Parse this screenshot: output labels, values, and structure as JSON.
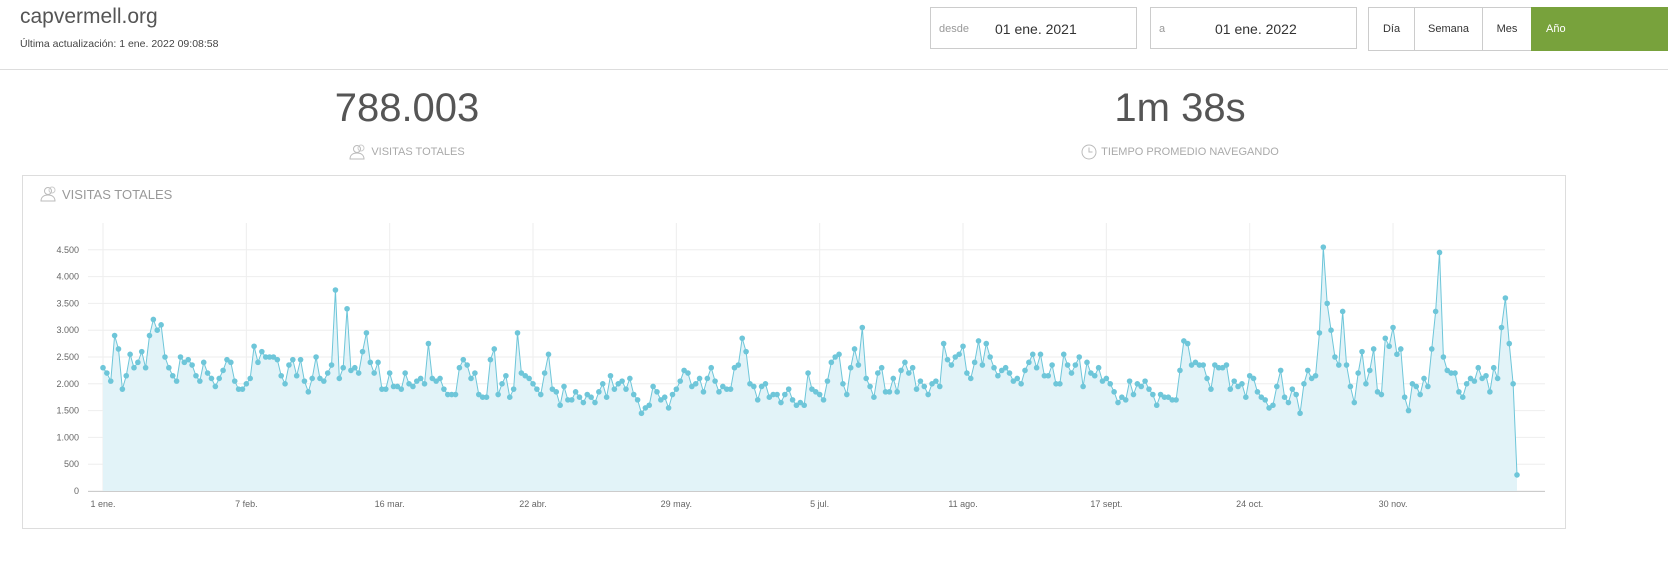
{
  "header": {
    "site": "capvermell.org",
    "updated": "Última actualización: 1 ene. 2022 09:08:58"
  },
  "date_range": {
    "from_label": "desde",
    "from": "01 ene. 2021",
    "to_label": "a",
    "to": "01 ene. 2022"
  },
  "periods": [
    "Día",
    "Semana",
    "Mes",
    "Año"
  ],
  "stats": [
    {
      "value": "788.003",
      "label": "VISITAS TOTALES"
    },
    {
      "value": "1m 38s",
      "label": "TIEMPO PROMEDIO NAVEGANDO"
    }
  ],
  "chart_data": {
    "type": "line",
    "title": "VISITAS TOTALES",
    "color": "#6ec6d9",
    "area": true,
    "area_color": "#e2f3f8",
    "grid": true,
    "categories": [
      "1 ene.",
      null,
      null,
      null,
      null,
      null,
      null,
      null,
      null,
      null,
      null,
      null,
      null,
      null,
      null,
      null,
      null,
      null,
      null,
      null,
      null,
      null,
      null,
      null,
      null,
      null,
      null,
      null,
      null,
      null,
      null,
      null,
      null,
      null,
      null,
      null,
      null,
      "7 feb.",
      null,
      null,
      null,
      null,
      null,
      null,
      null,
      null,
      null,
      null,
      null,
      null,
      null,
      null,
      null,
      null,
      null,
      null,
      null,
      null,
      null,
      null,
      null,
      null,
      null,
      null,
      null,
      null,
      null,
      null,
      null,
      null,
      null,
      null,
      null,
      null,
      "16 mar.",
      null,
      null,
      null,
      null,
      null,
      null,
      null,
      null,
      null,
      null,
      null,
      null,
      null,
      null,
      null,
      null,
      null,
      null,
      null,
      null,
      null,
      null,
      null,
      null,
      null,
      null,
      null,
      null,
      null,
      null,
      null,
      null,
      null,
      null,
      null,
      null,
      "22 abr.",
      null,
      null,
      null,
      null,
      null,
      null,
      null,
      null,
      null,
      null,
      null,
      null,
      null,
      null,
      null,
      null,
      null,
      null,
      null,
      null,
      null,
      null,
      null,
      null,
      null,
      null,
      null,
      null,
      null,
      null,
      null,
      null,
      null,
      null,
      null,
      null,
      "29 may.",
      null,
      null,
      null,
      null,
      null,
      null,
      null,
      null,
      null,
      null,
      null,
      null,
      null,
      null,
      null,
      null,
      null,
      null,
      null,
      null,
      null,
      null,
      null,
      null,
      null,
      null,
      null,
      null,
      null,
      null,
      null,
      null,
      null,
      null,
      null,
      null,
      "5 jul.",
      null,
      null,
      null,
      null,
      null,
      null,
      null,
      null,
      null,
      null,
      null,
      null,
      null,
      null,
      null,
      null,
      null,
      null,
      null,
      null,
      null,
      null,
      null,
      null,
      null,
      null,
      null,
      null,
      null,
      null,
      null,
      null,
      null,
      null,
      null,
      null,
      "11 ago.",
      null,
      null,
      null,
      null,
      null,
      null,
      null,
      null,
      null,
      null,
      null,
      null,
      null,
      null,
      null,
      null,
      null,
      null,
      null,
      null,
      null,
      null,
      null,
      null,
      null,
      null,
      null,
      null,
      null,
      null,
      null,
      null,
      null,
      null,
      null,
      null,
      "17 sept.",
      null,
      null,
      null,
      null,
      null,
      null,
      null,
      null,
      null,
      null,
      null,
      null,
      null,
      null,
      null,
      null,
      null,
      null,
      null,
      null,
      null,
      null,
      null,
      null,
      null,
      null,
      null,
      null,
      null,
      null,
      null,
      null,
      null,
      null,
      null,
      null,
      "24 oct.",
      null,
      null,
      null,
      null,
      null,
      null,
      null,
      null,
      null,
      null,
      null,
      null,
      null,
      null,
      null,
      null,
      null,
      null,
      null,
      null,
      null,
      null,
      null,
      null,
      null,
      null,
      null,
      null,
      null,
      null,
      null,
      null,
      null,
      null,
      null,
      null,
      "30 nov.",
      null,
      null,
      null,
      null,
      null,
      null,
      null,
      null,
      null,
      null,
      null,
      null,
      null,
      null,
      null,
      null,
      null,
      null,
      null,
      null,
      null,
      null,
      null,
      null,
      null,
      null,
      null,
      null,
      null,
      null,
      null,
      null
    ],
    "values": [
      2300,
      2200,
      2050,
      2900,
      2650,
      1900,
      2150,
      2550,
      2300,
      2400,
      2600,
      2300,
      2900,
      3200,
      3000,
      3100,
      2500,
      2300,
      2150,
      2050,
      2500,
      2400,
      2450,
      2350,
      2150,
      2050,
      2400,
      2200,
      2100,
      1950,
      2100,
      2250,
      2450,
      2400,
      2050,
      1900,
      1900,
      2000,
      2100,
      2700,
      2400,
      2600,
      2500,
      2500,
      2500,
      2450,
      2150,
      2000,
      2350,
      2450,
      2150,
      2450,
      2050,
      1850,
      2100,
      2500,
      2100,
      2050,
      2200,
      2350,
      3750,
      2100,
      2300,
      3400,
      2250,
      2300,
      2200,
      2600,
      2950,
      2400,
      2200,
      2400,
      1900,
      1900,
      2200,
      1950,
      1950,
      1900,
      2200,
      2000,
      1950,
      2050,
      2100,
      2000,
      2750,
      2100,
      2050,
      2100,
      1900,
      1800,
      1800,
      1800,
      2300,
      2450,
      2350,
      2100,
      2200,
      1800,
      1750,
      1750,
      2450,
      2650,
      1800,
      2000,
      2150,
      1750,
      1900,
      2950,
      2200,
      2150,
      2100,
      2000,
      1900,
      1800,
      2200,
      2550,
      1900,
      1850,
      1600,
      1950,
      1700,
      1700,
      1850,
      1750,
      1650,
      1800,
      1750,
      1650,
      1850,
      2000,
      1750,
      2150,
      1900,
      2000,
      2050,
      1900,
      2100,
      1800,
      1700,
      1450,
      1550,
      1600,
      1950,
      1850,
      1700,
      1750,
      1550,
      1800,
      1900,
      2050,
      2250,
      2200,
      1950,
      2000,
      2100,
      1850,
      2100,
      2300,
      2050,
      1850,
      1950,
      1900,
      1900,
      2300,
      2350,
      2850,
      2600,
      2000,
      1950,
      1700,
      1950,
      2000,
      1750,
      1800,
      1800,
      1650,
      1800,
      1900,
      1700,
      1600,
      1650,
      1600,
      2200,
      1900,
      1850,
      1800,
      1700,
      2050,
      2400,
      2500,
      2550,
      2000,
      1800,
      2300,
      2650,
      2350,
      3050,
      2100,
      1950,
      1750,
      2200,
      2300,
      1850,
      1850,
      2100,
      1850,
      2250,
      2400,
      2200,
      2300,
      1900,
      2050,
      1950,
      1800,
      2000,
      2050,
      1950,
      2750,
      2450,
      2350,
      2500,
      2550,
      2700,
      2200,
      2100,
      2400,
      2800,
      2350,
      2750,
      2500,
      2300,
      2150,
      2250,
      2300,
      2200,
      2050,
      2100,
      2000,
      2250,
      2400,
      2550,
      2300,
      2550,
      2150,
      2150,
      2350,
      2000,
      2000,
      2550,
      2350,
      2200,
      2350,
      2500,
      1950,
      2400,
      2200,
      2150,
      2300,
      2050,
      2100,
      2000,
      1850,
      1650,
      1750,
      1700,
      2050,
      1800,
      2000,
      1950,
      2050,
      1900,
      1800,
      1600,
      1800,
      1750,
      1750,
      1700,
      1700,
      2250,
      2800,
      2750,
      2350,
      2400,
      2350,
      2350,
      2100,
      1900,
      2350,
      2300,
      2300,
      2350,
      1900,
      2050,
      1950,
      2000,
      1750,
      2150,
      2100,
      1850,
      1750,
      1700,
      1550,
      1600,
      1950,
      2250,
      1750,
      1650,
      1900,
      1800,
      1450,
      2000,
      2250,
      2100,
      2150,
      2950,
      4550,
      3500,
      3000,
      2500,
      2350,
      3350,
      2350,
      1950,
      1650,
      2200,
      2600,
      2000,
      2250,
      2650,
      1850,
      1800,
      2850,
      2700,
      3050,
      2550,
      2650,
      1750,
      1500,
      2000,
      1950,
      1800,
      2100,
      1950,
      2650,
      3350,
      4450,
      2500,
      2250,
      2200,
      2200,
      1850,
      1750,
      2000,
      2100,
      2050,
      2300,
      2100,
      2150,
      1850,
      2300,
      2100,
      3050,
      3600,
      2750,
      2000,
      300
    ],
    "ylim": [
      0,
      5000
    ],
    "yticks": [
      0,
      500,
      {
        "value": 1000,
        "label": "1.000"
      },
      {
        "value": 1500,
        "label": "1.500"
      },
      {
        "value": 2000,
        "label": "2.000"
      },
      {
        "value": 2500,
        "label": "2.500"
      },
      {
        "value": 3000,
        "label": "3.000"
      },
      {
        "value": 3500,
        "label": "3.500"
      },
      {
        "value": 4000,
        "label": "4.000"
      },
      {
        "value": 4500,
        "label": "4.500"
      }
    ]
  }
}
